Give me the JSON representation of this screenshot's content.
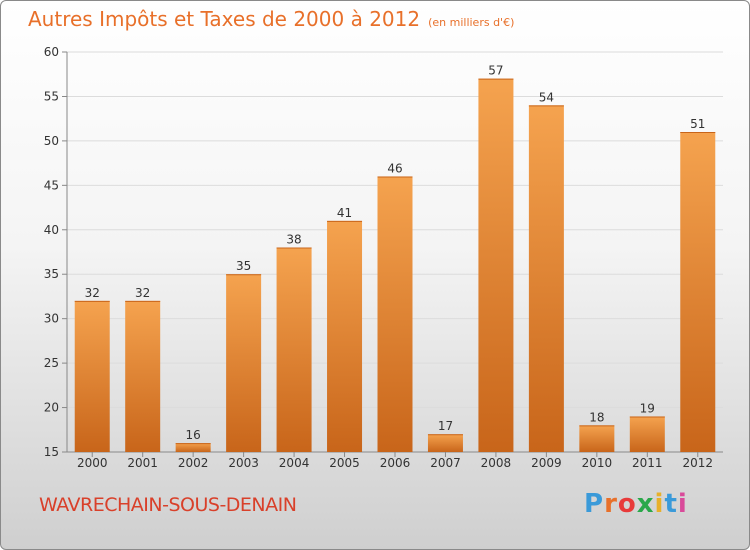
{
  "header": {
    "title": "Autres Impôts et Taxes de 2000 à 2012",
    "subtitle": "(en milliers d'€)"
  },
  "commune": "WAVRECHAIN-SOUS-DENAIN",
  "logo": {
    "text": "Proxiti",
    "colors": [
      "#3a9ad9",
      "#e8702a",
      "#e83a3a",
      "#2aa84a",
      "#e8b02a",
      "#3a9ad9",
      "#d94a9a"
    ]
  },
  "colors": {
    "bar": "#f0963f",
    "bar_dark": "#c8651a",
    "title": "#e8702a",
    "commune": "#d9402a"
  },
  "chart_data": {
    "type": "bar",
    "title": "Autres Impôts et Taxes de 2000 à 2012",
    "subtitle": "(en milliers d'€)",
    "xlabel": "",
    "ylabel": "",
    "categories": [
      "2000",
      "2001",
      "2002",
      "2003",
      "2004",
      "2005",
      "2006",
      "2007",
      "2008",
      "2009",
      "2010",
      "2011",
      "2012"
    ],
    "values": [
      32,
      32,
      16,
      35,
      38,
      41,
      46,
      17,
      57,
      54,
      18,
      19,
      51
    ],
    "ylim": [
      15,
      60
    ],
    "yticks": [
      15,
      20,
      25,
      30,
      35,
      40,
      45,
      50,
      55,
      60
    ],
    "grid": true,
    "legend": "none"
  }
}
